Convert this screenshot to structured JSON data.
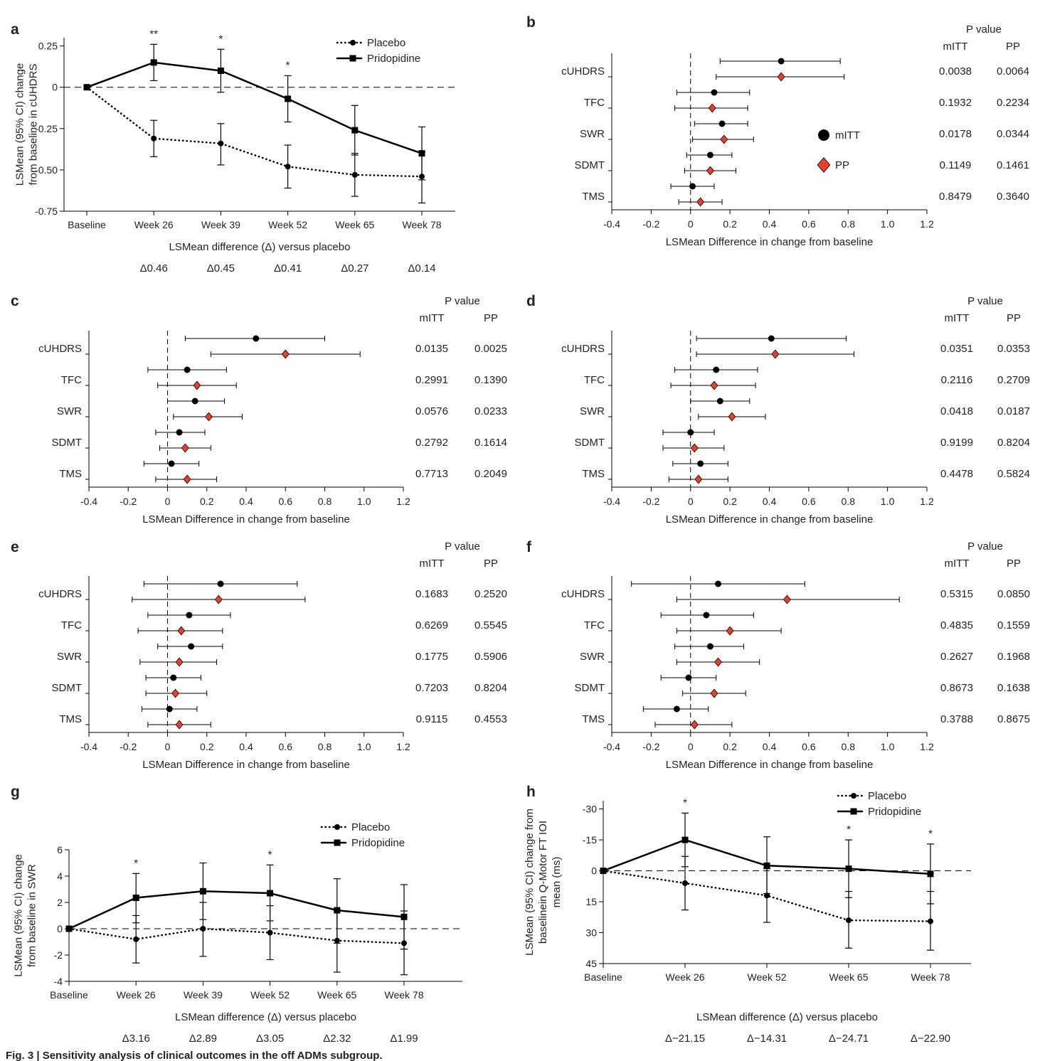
{
  "caption": "Fig. 3 | Sensitivity analysis of clinical outcomes in the off ADMs subgroup.",
  "chart_data": [
    {
      "type": "line",
      "label": "a",
      "ylabel": [
        "LSMean (95% CI) change",
        "from baseline in cUHDRS"
      ],
      "subtitle": "LSMean difference (Δ) versus placebo",
      "categories": [
        "Baseline",
        "Week 26",
        "Week 39",
        "Week 52",
        "Week 65",
        "Week 78"
      ],
      "delta_labels": [
        null,
        "Δ0.46",
        "Δ0.45",
        "Δ0.41",
        "Δ0.27",
        "Δ0.14"
      ],
      "ylim": [
        -0.75,
        0.3
      ],
      "yticks": [
        0.25,
        0,
        -0.25,
        {
          "value": -0.5,
          "label": "-0.50"
        },
        -0.75
      ],
      "hline": 0,
      "series": [
        {
          "name": "Placebo",
          "color": "#000000",
          "dash": "dotted",
          "marker": "circle",
          "values": [
            0,
            -0.31,
            -0.34,
            -0.48,
            -0.53,
            -0.54
          ],
          "lower": [
            null,
            -0.42,
            -0.47,
            -0.61,
            -0.66,
            -0.7
          ],
          "upper": [
            null,
            -0.2,
            -0.22,
            -0.35,
            -0.4,
            -0.39
          ]
        },
        {
          "name": "Pridopidine",
          "color": "#000000",
          "dash": "solid",
          "marker": "square",
          "values": [
            0,
            0.15,
            0.1,
            -0.07,
            -0.26,
            -0.4
          ],
          "lower": [
            null,
            0.04,
            -0.03,
            -0.21,
            -0.41,
            -0.56
          ],
          "upper": [
            null,
            0.26,
            0.23,
            0.07,
            -0.11,
            -0.24
          ]
        }
      ],
      "annotations": [
        {
          "x": "Week 26",
          "text": "**"
        },
        {
          "x": "Week 39",
          "text": "*"
        },
        {
          "x": "Week 52",
          "text": "*"
        }
      ]
    },
    {
      "type": "forest",
      "label": "b",
      "xlabel": "LSMean Difference in change from baseline",
      "categories": [
        "cUHDRS",
        "TFC",
        "SWR",
        "SDMT",
        "TMS"
      ],
      "xlim": [
        -0.4,
        1.2
      ],
      "xticks": [
        -0.4,
        -0.2,
        0,
        0.2,
        0.4,
        0.6,
        0.8,
        {
          "value": 1.0,
          "label": "1.0"
        },
        1.2
      ],
      "vline": 0,
      "legend": true,
      "series": [
        {
          "name": "mITT",
          "color": "#000000",
          "marker": "circle",
          "values": [
            0.46,
            0.12,
            0.16,
            0.1,
            0.01
          ],
          "lower": [
            0.15,
            -0.07,
            0.02,
            -0.02,
            -0.1
          ],
          "upper": [
            0.76,
            0.3,
            0.29,
            0.21,
            0.12
          ]
        },
        {
          "name": "PP",
          "color": "#e8402a",
          "marker": "diamond",
          "values": [
            0.46,
            0.11,
            0.17,
            0.1,
            0.05
          ],
          "lower": [
            0.13,
            -0.08,
            0.01,
            -0.03,
            -0.06
          ],
          "upper": [
            0.78,
            0.29,
            0.32,
            0.23,
            0.16
          ]
        }
      ],
      "pvalue_title": "P value",
      "pvalue_columns": [
        "mITT",
        "PP"
      ],
      "pvalues": [
        [
          "0.0038",
          "0.0064"
        ],
        [
          "0.1932",
          "0.2234"
        ],
        [
          "0.0178",
          "0.0344"
        ],
        [
          "0.1149",
          "0.1461"
        ],
        [
          "0.8479",
          "0.3640"
        ]
      ]
    },
    {
      "type": "forest",
      "label": "c",
      "xlabel": "LSMean Difference in change from baseline",
      "categories": [
        "cUHDRS",
        "TFC",
        "SWR",
        "SDMT",
        "TMS"
      ],
      "xlim": [
        -0.4,
        1.2
      ],
      "xticks": [
        -0.4,
        -0.2,
        0,
        0.2,
        0.4,
        0.6,
        0.8,
        {
          "value": 1.0,
          "label": "1.0"
        },
        1.2
      ],
      "vline": 0,
      "legend": false,
      "series": [
        {
          "name": "mITT",
          "color": "#000000",
          "marker": "circle",
          "values": [
            0.45,
            0.1,
            0.14,
            0.06,
            0.02
          ],
          "lower": [
            0.09,
            -0.1,
            0.0,
            -0.06,
            -0.12
          ],
          "upper": [
            0.8,
            0.3,
            0.29,
            0.19,
            0.16
          ]
        },
        {
          "name": "PP",
          "color": "#e8402a",
          "marker": "diamond",
          "values": [
            0.6,
            0.15,
            0.21,
            0.09,
            0.1
          ],
          "lower": [
            0.22,
            -0.05,
            0.03,
            -0.04,
            -0.06
          ],
          "upper": [
            0.98,
            0.35,
            0.38,
            0.22,
            0.25
          ]
        }
      ],
      "pvalue_title": "P value",
      "pvalue_columns": [
        "mITT",
        "PP"
      ],
      "pvalues": [
        [
          "0.0135",
          "0.0025"
        ],
        [
          "0.2991",
          "0.1390"
        ],
        [
          "0.0576",
          "0.0233"
        ],
        [
          "0.2792",
          "0.1614"
        ],
        [
          "0.7713",
          "0.2049"
        ]
      ]
    },
    {
      "type": "forest",
      "label": "d",
      "xlabel": "LSMean Difference in change from baseline",
      "categories": [
        "cUHDRS",
        "TFC",
        "SWR",
        "SDMT",
        "TMS"
      ],
      "xlim": [
        -0.4,
        1.2
      ],
      "xticks": [
        -0.4,
        -0.2,
        0,
        0.2,
        0.4,
        0.6,
        0.8,
        {
          "value": 1.0,
          "label": "1.0"
        },
        1.2
      ],
      "vline": 0,
      "legend": false,
      "series": [
        {
          "name": "mITT",
          "color": "#000000",
          "marker": "circle",
          "values": [
            0.41,
            0.13,
            0.15,
            0.0,
            0.05
          ],
          "lower": [
            0.03,
            -0.08,
            0.0,
            -0.14,
            -0.09
          ],
          "upper": [
            0.79,
            0.34,
            0.3,
            0.12,
            0.19
          ]
        },
        {
          "name": "PP",
          "color": "#e8402a",
          "marker": "diamond",
          "values": [
            0.43,
            0.12,
            0.21,
            0.02,
            0.04
          ],
          "lower": [
            0.03,
            -0.1,
            0.04,
            -0.14,
            -0.11
          ],
          "upper": [
            0.83,
            0.33,
            0.38,
            0.17,
            0.19
          ]
        }
      ],
      "pvalue_title": "P value",
      "pvalue_columns": [
        "mITT",
        "PP"
      ],
      "pvalues": [
        [
          "0.0351",
          "0.0353"
        ],
        [
          "0.2116",
          "0.2709"
        ],
        [
          "0.0418",
          "0.0187"
        ],
        [
          "0.9199",
          "0.8204"
        ],
        [
          "0.4478",
          "0.5824"
        ]
      ]
    },
    {
      "type": "forest",
      "label": "e",
      "xlabel": "LSMean Difference in change from baseline",
      "categories": [
        "cUHDRS",
        "TFC",
        "SWR",
        "SDMT",
        "TMS"
      ],
      "xlim": [
        -0.4,
        1.2
      ],
      "xticks": [
        -0.4,
        -0.2,
        0,
        0.2,
        0.4,
        0.6,
        0.8,
        {
          "value": 1.0,
          "label": "1.0"
        },
        1.2
      ],
      "vline": 0,
      "legend": false,
      "series": [
        {
          "name": "mITT",
          "color": "#000000",
          "marker": "circle",
          "values": [
            0.27,
            0.11,
            0.12,
            0.03,
            0.01
          ],
          "lower": [
            -0.12,
            -0.1,
            -0.05,
            -0.11,
            -0.13
          ],
          "upper": [
            0.66,
            0.32,
            0.28,
            0.17,
            0.15
          ]
        },
        {
          "name": "PP",
          "color": "#e8402a",
          "marker": "diamond",
          "values": [
            0.26,
            0.07,
            0.06,
            0.04,
            0.06
          ],
          "lower": [
            -0.18,
            -0.15,
            -0.14,
            -0.11,
            -0.1
          ],
          "upper": [
            0.7,
            0.28,
            0.25,
            0.2,
            0.22
          ]
        }
      ],
      "pvalue_title": "P value",
      "pvalue_columns": [
        "mITT",
        "PP"
      ],
      "pvalues": [
        [
          "0.1683",
          "0.2520"
        ],
        [
          "0.6269",
          "0.5545"
        ],
        [
          "0.1775",
          "0.5906"
        ],
        [
          "0.7203",
          "0.8204"
        ],
        [
          "0.9115",
          "0.4553"
        ]
      ]
    },
    {
      "type": "forest",
      "label": "f",
      "xlabel": "LSMean Difference in change from baseline",
      "categories": [
        "cUHDRS",
        "TFC",
        "SWR",
        "SDMT",
        "TMS"
      ],
      "xlim": [
        -0.4,
        1.2
      ],
      "xticks": [
        -0.4,
        -0.2,
        0,
        0.2,
        0.4,
        0.6,
        0.8,
        {
          "value": 1.0,
          "label": "1.0"
        },
        1.2
      ],
      "vline": 0,
      "legend": false,
      "series": [
        {
          "name": "mITT",
          "color": "#000000",
          "marker": "circle",
          "values": [
            0.14,
            0.08,
            0.1,
            -0.01,
            -0.07
          ],
          "lower": [
            -0.3,
            -0.15,
            -0.08,
            -0.15,
            -0.24
          ],
          "upper": [
            0.58,
            0.32,
            0.27,
            0.13,
            0.09
          ]
        },
        {
          "name": "PP",
          "color": "#e8402a",
          "marker": "diamond",
          "values": [
            0.49,
            0.2,
            0.14,
            0.12,
            0.02
          ],
          "lower": [
            -0.07,
            -0.07,
            -0.07,
            -0.04,
            -0.18
          ],
          "upper": [
            1.06,
            0.46,
            0.35,
            0.28,
            0.21
          ]
        }
      ],
      "pvalue_title": "P value",
      "pvalue_columns": [
        "mITT",
        "PP"
      ],
      "pvalues": [
        [
          "0.5315",
          "0.0850"
        ],
        [
          "0.4835",
          "0.1559"
        ],
        [
          "0.2627",
          "0.1968"
        ],
        [
          "0.8673",
          "0.1638"
        ],
        [
          "0.3788",
          "0.8675"
        ]
      ]
    },
    {
      "type": "line",
      "label": "g",
      "ylabel": [
        "LSMean (95% CI) change",
        "from baseline in SWR"
      ],
      "subtitle": "LSMean difference (Δ) versus placebo",
      "categories": [
        "Baseline",
        "Week 26",
        "Week 39",
        "Week 52",
        "Week 65",
        "Week 78"
      ],
      "delta_labels": [
        null,
        "Δ3.16",
        "Δ2.89",
        "Δ3.05",
        "Δ2.32",
        "Δ1.99"
      ],
      "ylim": [
        -4,
        6
      ],
      "yticks": [
        -4,
        -2,
        0,
        2,
        4,
        6
      ],
      "hline": 0,
      "series": [
        {
          "name": "Placebo",
          "color": "#000000",
          "dash": "dotted",
          "marker": "circle",
          "values": [
            0,
            -0.8,
            0,
            -0.3,
            -0.9,
            -1.1
          ],
          "lower": [
            null,
            -2.6,
            -2.1,
            -2.35,
            -3.3,
            -3.5
          ],
          "upper": [
            null,
            1.0,
            2.0,
            1.75,
            1.4,
            1.35
          ]
        },
        {
          "name": "Pridopidine",
          "color": "#000000",
          "dash": "solid",
          "marker": "square",
          "values": [
            0,
            2.35,
            2.85,
            2.7,
            1.4,
            0.9
          ],
          "lower": [
            null,
            0.45,
            0.7,
            0.6,
            -1.1,
            -1.55
          ],
          "upper": [
            null,
            4.2,
            5.0,
            4.85,
            3.8,
            3.35
          ]
        }
      ],
      "annotations": [
        {
          "x": "Week 26",
          "text": "*"
        },
        {
          "x": "Week 52",
          "text": "*"
        }
      ]
    },
    {
      "type": "line",
      "label": "h",
      "invert_y": true,
      "ylabel": [
        "LSMean (95% CI) change from",
        "baselinein Q-Motor FT IOI",
        "mean (ms)"
      ],
      "subtitle": "LSMean difference (Δ) versus placebo",
      "categories": [
        "Baseline",
        "Week 26",
        "Week 52",
        "Week 65",
        "Week 78"
      ],
      "delta_labels": [
        null,
        "Δ−21.15",
        "Δ−14.31",
        "Δ−24.71",
        "Δ−22.90"
      ],
      "ylim": [
        -34,
        45
      ],
      "yticks": [
        -30,
        -15,
        0,
        15,
        30,
        45
      ],
      "hline": 0,
      "series": [
        {
          "name": "Placebo",
          "color": "#000000",
          "dash": "dotted",
          "marker": "circle",
          "values": [
            0,
            6,
            12,
            24,
            24.5
          ],
          "lower": [
            null,
            -7,
            -1,
            10,
            10
          ],
          "upper": [
            null,
            19,
            25,
            37.5,
            38.5
          ]
        },
        {
          "name": "Pridopidine",
          "color": "#000000",
          "dash": "solid",
          "marker": "square",
          "values": [
            0,
            -15,
            -2.5,
            -1,
            1.5
          ],
          "lower": [
            null,
            -28,
            -16.5,
            -15,
            -13
          ],
          "upper": [
            null,
            -2,
            11,
            13,
            16
          ]
        }
      ],
      "annotations": [
        {
          "x": "Week 26",
          "text": "*"
        },
        {
          "x": "Week 65",
          "text": "*"
        },
        {
          "x": "Week 78",
          "text": "*"
        }
      ]
    }
  ]
}
